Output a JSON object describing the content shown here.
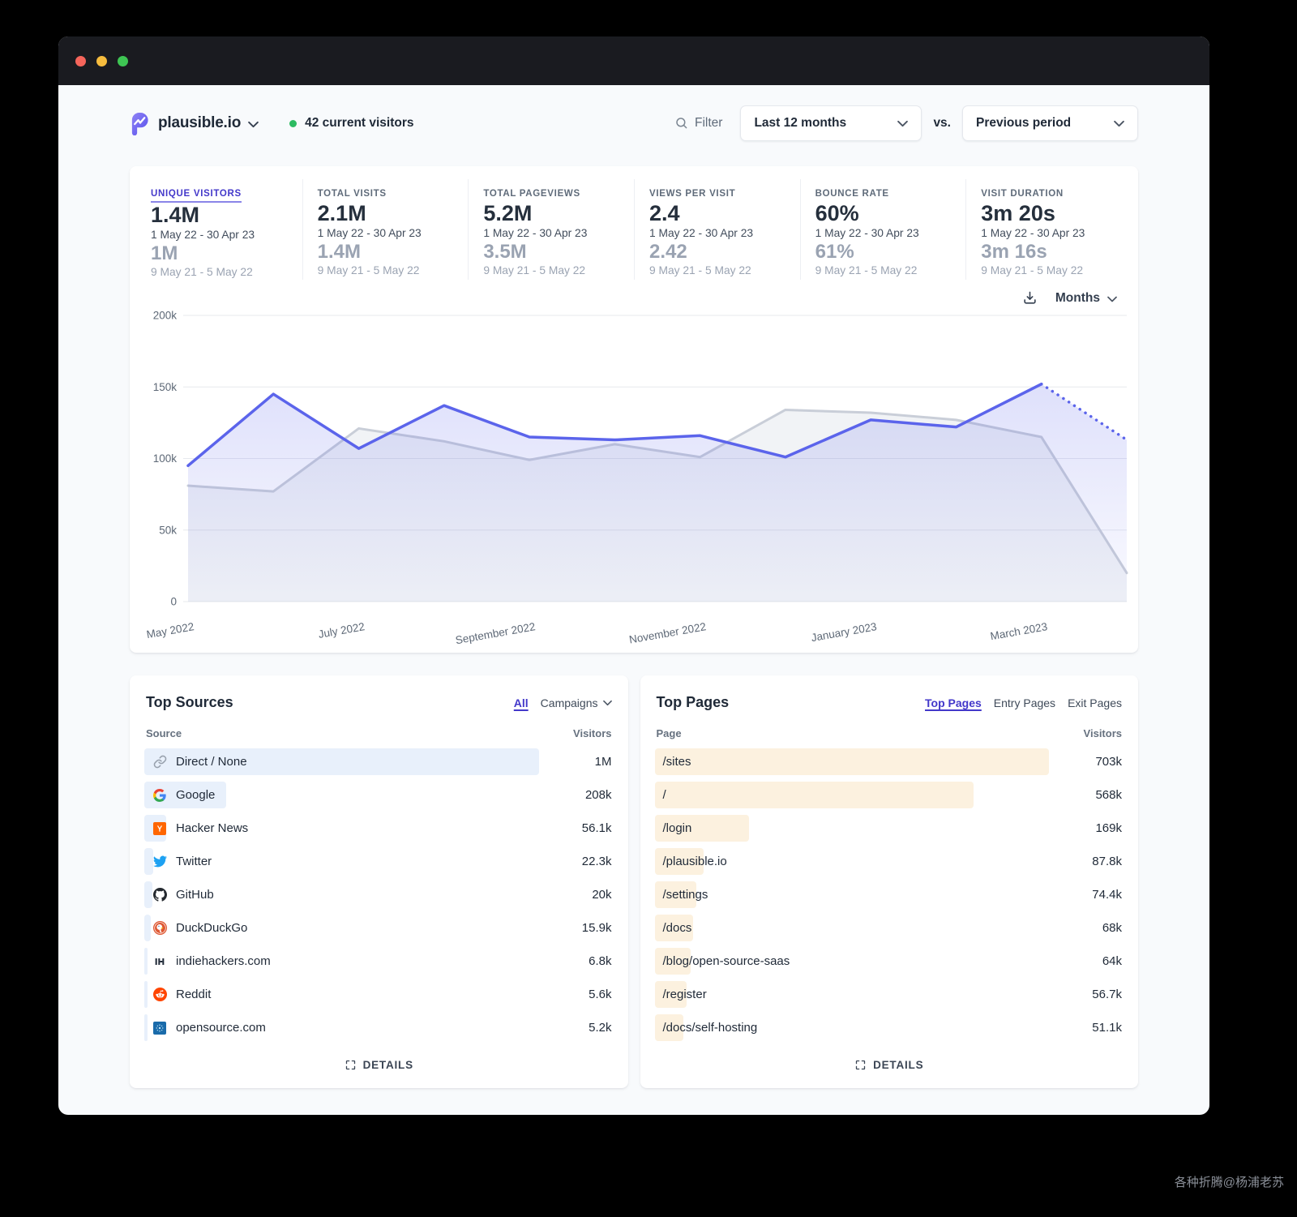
{
  "header": {
    "site_name": "plausible.io",
    "current_visitors": "42 current visitors",
    "filter_label": "Filter",
    "date_range": "Last 12 months",
    "vs_label": "vs.",
    "comparison": "Previous period"
  },
  "stats": [
    {
      "label": "UNIQUE VISITORS",
      "value": "1.4M",
      "range": "1 May 22 - 30 Apr 23",
      "prev_value": "1M",
      "prev_range": "9 May 21 - 5 May 22",
      "active": true
    },
    {
      "label": "TOTAL VISITS",
      "value": "2.1M",
      "range": "1 May 22 - 30 Apr 23",
      "prev_value": "1.4M",
      "prev_range": "9 May 21 - 5 May 22",
      "active": false
    },
    {
      "label": "TOTAL PAGEVIEWS",
      "value": "5.2M",
      "range": "1 May 22 - 30 Apr 23",
      "prev_value": "3.5M",
      "prev_range": "9 May 21 - 5 May 22",
      "active": false
    },
    {
      "label": "VIEWS PER VISIT",
      "value": "2.4",
      "range": "1 May 22 - 30 Apr 23",
      "prev_value": "2.42",
      "prev_range": "9 May 21 - 5 May 22",
      "active": false
    },
    {
      "label": "BOUNCE RATE",
      "value": "60%",
      "range": "1 May 22 - 30 Apr 23",
      "prev_value": "61%",
      "prev_range": "9 May 21 - 5 May 22",
      "active": false
    },
    {
      "label": "VISIT DURATION",
      "value": "3m 20s",
      "range": "1 May 22 - 30 Apr 23",
      "prev_value": "3m 16s",
      "prev_range": "9 May 21 - 5 May 22",
      "active": false
    }
  ],
  "chart_controls": {
    "interval": "Months"
  },
  "chart_data": {
    "type": "line",
    "x": [
      "May 2022",
      "June 2022",
      "July 2022",
      "August 2022",
      "September 2022",
      "October 2022",
      "November 2022",
      "December 2022",
      "January 2023",
      "February 2023",
      "March 2023",
      "April 2023"
    ],
    "x_tick_labels": [
      "May 2022",
      "July 2022",
      "September 2022",
      "November 2022",
      "January 2023",
      "March 2023"
    ],
    "x_tick_indices": [
      0,
      2,
      4,
      6,
      8,
      10
    ],
    "ylim": [
      0,
      200000
    ],
    "y_ticks": [
      {
        "value": 0,
        "label": "0"
      },
      {
        "value": 50000,
        "label": "50k"
      },
      {
        "value": 100000,
        "label": "100k"
      },
      {
        "value": 150000,
        "label": "150k"
      },
      {
        "value": 200000,
        "label": "200k"
      }
    ],
    "grid": "horizontal",
    "legend_position": "none",
    "series": [
      {
        "name": "1 May 22 - 30 Apr 23",
        "color": "#5b64eb",
        "values": [
          95000,
          145000,
          107000,
          137000,
          115000,
          113000,
          116000,
          101000,
          127000,
          122000,
          152000,
          113000
        ],
        "incomplete_last_segment": true
      },
      {
        "name": "9 May 21 - 5 May 22",
        "color": "#c9ced8",
        "values": [
          81000,
          77000,
          121000,
          112000,
          99000,
          110000,
          101000,
          134000,
          132000,
          127000,
          115000,
          20000
        ],
        "incomplete_last_segment": false
      }
    ]
  },
  "sources": {
    "title": "Top Sources",
    "tabs": [
      {
        "label": "All",
        "active": true
      },
      {
        "label": "Campaigns",
        "active": false
      }
    ],
    "columns": {
      "name": "Source",
      "visitors": "Visitors"
    },
    "rows": [
      {
        "label": "Direct / None",
        "value": "1M",
        "pct": 100,
        "icon": "link-icon"
      },
      {
        "label": "Google",
        "value": "208k",
        "pct": 20.8,
        "icon": "google-icon"
      },
      {
        "label": "Hacker News",
        "value": "56.1k",
        "pct": 5.6,
        "icon": "hackernews-icon"
      },
      {
        "label": "Twitter",
        "value": "22.3k",
        "pct": 2.2,
        "icon": "twitter-icon"
      },
      {
        "label": "GitHub",
        "value": "20k",
        "pct": 2.0,
        "icon": "github-icon"
      },
      {
        "label": "DuckDuckGo",
        "value": "15.9k",
        "pct": 1.6,
        "icon": "duckduckgo-icon"
      },
      {
        "label": "indiehackers.com",
        "value": "6.8k",
        "pct": 0.7,
        "icon": "indiehackers-icon"
      },
      {
        "label": "Reddit",
        "value": "5.6k",
        "pct": 0.6,
        "icon": "reddit-icon"
      },
      {
        "label": "opensource.com",
        "value": "5.2k",
        "pct": 0.5,
        "icon": "opensource-icon"
      }
    ],
    "details_label": "DETAILS"
  },
  "pages": {
    "title": "Top Pages",
    "tabs": [
      {
        "label": "Top Pages",
        "active": true
      },
      {
        "label": "Entry Pages",
        "active": false
      },
      {
        "label": "Exit Pages",
        "active": false
      }
    ],
    "columns": {
      "name": "Page",
      "visitors": "Visitors"
    },
    "rows": [
      {
        "label": "/sites",
        "value": "703k",
        "pct": 100
      },
      {
        "label": "/",
        "value": "568k",
        "pct": 80.8
      },
      {
        "label": "/login",
        "value": "169k",
        "pct": 24.0
      },
      {
        "label": "/plausible.io",
        "value": "87.8k",
        "pct": 12.5
      },
      {
        "label": "/settings",
        "value": "74.4k",
        "pct": 10.6
      },
      {
        "label": "/docs",
        "value": "68k",
        "pct": 9.7
      },
      {
        "label": "/blog/open-source-saas",
        "value": "64k",
        "pct": 9.1
      },
      {
        "label": "/register",
        "value": "56.7k",
        "pct": 8.1
      },
      {
        "label": "/docs/self-hosting",
        "value": "51.1k",
        "pct": 7.3
      }
    ],
    "details_label": "DETAILS"
  },
  "watermark": "各种折腾@杨浦老苏",
  "colors": {
    "accent": "#5850ec",
    "active_link": "#4338ca",
    "line_current": "#5b64eb",
    "line_previous": "#c9ced8",
    "source_bar": "#e8f0fb",
    "page_bar": "#fcf1df",
    "live_dot": "#2dbb62",
    "titlebar": "#1a1b20",
    "page_bg": "#f8fafc",
    "grid_line": "#e7e9ee"
  }
}
